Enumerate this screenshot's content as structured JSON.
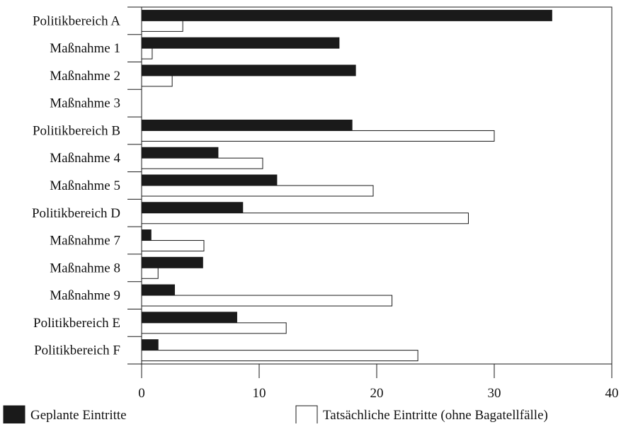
{
  "chart_data": {
    "type": "bar",
    "orientation": "horizontal",
    "categories": [
      "Politikbereich A",
      "Maßnahme 1",
      "Maßnahme 2",
      "Maßnahme 3",
      "Politikbereich B",
      "Maßnahme 4",
      "Maßnahme 5",
      "Politikbereich D",
      "Maßnahme 7",
      "Maßnahme 8",
      "Maßnahme 9",
      "Politikbereich E",
      "Politikbereich F"
    ],
    "series": [
      {
        "name": "Geplante Eintritte",
        "color": "#1a1a1a",
        "values": [
          34.9,
          16.8,
          18.2,
          0,
          17.9,
          6.5,
          11.5,
          8.6,
          0.8,
          5.2,
          2.8,
          8.1,
          1.4
        ]
      },
      {
        "name": "Tatsächliche Eintritte (ohne Bagatellfälle)",
        "color": "#ffffff",
        "values": [
          3.5,
          0.9,
          2.6,
          0,
          30.0,
          10.3,
          19.7,
          27.8,
          5.3,
          1.4,
          21.3,
          12.3,
          23.5
        ]
      }
    ],
    "xlim": [
      0,
      40
    ],
    "xticks": [
      "0",
      "10",
      "20",
      "30",
      "40"
    ],
    "grid": false,
    "legend_position": "bottom",
    "title": "",
    "xlabel": "",
    "ylabel": ""
  }
}
